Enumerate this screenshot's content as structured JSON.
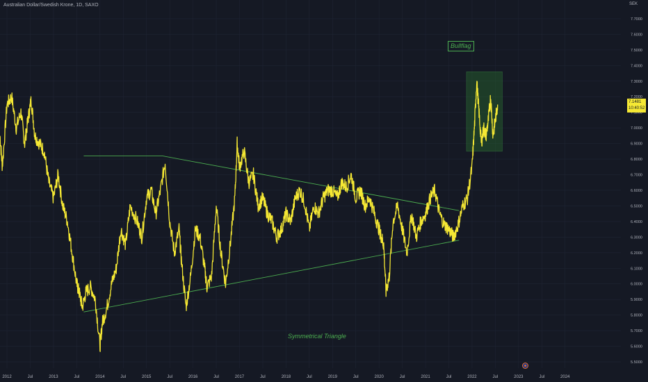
{
  "header": {
    "symbol": "Australian Dollar/Swedish Krone",
    "interval": "1D",
    "exchange": "SAXO"
  },
  "currency_label": "SEK",
  "annotations": {
    "bullflag": "Bullflag",
    "triangle": "Symmetrical Triangle"
  },
  "last_price": {
    "value": "7.1481",
    "countdown": "10:40:52"
  },
  "colors": {
    "background": "#151924",
    "grid": "#1f2433",
    "price_line": "#f5e834",
    "pattern": "#4caf50",
    "axis_text": "#b2b5be"
  },
  "chart_data": {
    "type": "line",
    "title": "",
    "xlabel": "",
    "ylabel": "",
    "ylim": [
      5.46,
      7.82
    ],
    "xlim": [
      2011.85,
      2025.2
    ],
    "y_ticks": [
      "5.5000",
      "5.6000",
      "5.7000",
      "5.8000",
      "5.9000",
      "6.0000",
      "6.1000",
      "6.2000",
      "6.3000",
      "6.4000",
      "6.5000",
      "6.6000",
      "6.7000",
      "6.8000",
      "6.9000",
      "7.0000",
      "7.1000",
      "7.2000",
      "7.3000",
      "7.4000",
      "7.5000",
      "7.6000",
      "7.7000"
    ],
    "x_ticks": [
      {
        "label": "2012",
        "x": 2012.0
      },
      {
        "label": "Jul",
        "x": 2012.5
      },
      {
        "label": "2013",
        "x": 2013.0
      },
      {
        "label": "Jul",
        "x": 2013.5
      },
      {
        "label": "2014",
        "x": 2014.0
      },
      {
        "label": "Jul",
        "x": 2014.5
      },
      {
        "label": "2015",
        "x": 2015.0
      },
      {
        "label": "Jul",
        "x": 2015.5
      },
      {
        "label": "2016",
        "x": 2016.0
      },
      {
        "label": "Jul",
        "x": 2016.5
      },
      {
        "label": "2017",
        "x": 2017.0
      },
      {
        "label": "Jul",
        "x": 2017.5
      },
      {
        "label": "2018",
        "x": 2018.0
      },
      {
        "label": "Jul",
        "x": 2018.5
      },
      {
        "label": "2019",
        "x": 2019.0
      },
      {
        "label": "Jul",
        "x": 2019.5
      },
      {
        "label": "2020",
        "x": 2020.0
      },
      {
        "label": "Jul",
        "x": 2020.5
      },
      {
        "label": "2021",
        "x": 2021.0
      },
      {
        "label": "Jul",
        "x": 2021.5
      },
      {
        "label": "2022",
        "x": 2022.0
      },
      {
        "label": "Jul",
        "x": 2022.5
      },
      {
        "label": "2023",
        "x": 2023.0
      },
      {
        "label": "Jul",
        "x": 2023.5
      },
      {
        "label": "2024",
        "x": 2024.0
      }
    ],
    "series": [
      {
        "x": [
          2011.85,
          2011.9,
          2012.0,
          2012.1,
          2012.2,
          2012.3,
          2012.38,
          2012.45,
          2012.52,
          2012.6,
          2012.7,
          2012.8,
          2012.9,
          2013.0,
          2013.1,
          2013.2,
          2013.3,
          2013.4,
          2013.5,
          2013.55,
          2013.62,
          2013.7,
          2013.8,
          2013.9,
          2014.0,
          2014.05,
          2014.15,
          2014.25,
          2014.35,
          2014.45,
          2014.55,
          2014.65,
          2014.8,
          2014.9,
          2015.0,
          2015.1,
          2015.2,
          2015.3,
          2015.4,
          2015.5,
          2015.6,
          2015.7,
          2015.75,
          2015.85,
          2015.95,
          2016.05,
          2016.15,
          2016.25,
          2016.3,
          2016.4,
          2016.5,
          2016.6,
          2016.7,
          2016.8,
          2016.9,
          2016.95,
          2017.0,
          2017.1,
          2017.2,
          2017.3,
          2017.4,
          2017.5,
          2017.6,
          2017.7,
          2017.8,
          2017.9,
          2018.0,
          2018.1,
          2018.2,
          2018.3,
          2018.4,
          2018.5,
          2018.6,
          2018.7,
          2018.8,
          2018.9,
          2019.0,
          2019.1,
          2019.2,
          2019.3,
          2019.4,
          2019.5,
          2019.6,
          2019.7,
          2019.8,
          2019.9,
          2020.0,
          2020.05,
          2020.1,
          2020.15,
          2020.22,
          2020.3,
          2020.4,
          2020.5,
          2020.6,
          2020.7,
          2020.8,
          2020.9,
          2021.0,
          2021.1,
          2021.2,
          2021.3,
          2021.4,
          2021.5,
          2021.6,
          2021.7,
          2021.8,
          2021.9,
          2022.0,
          2022.05,
          2022.1,
          2022.15,
          2022.2,
          2022.25,
          2022.3,
          2022.35,
          2022.4,
          2022.45,
          2022.5,
          2022.55
        ],
        "y": [
          6.95,
          6.75,
          7.15,
          7.2,
          7.0,
          7.1,
          6.9,
          7.05,
          7.18,
          6.95,
          6.9,
          6.85,
          6.65,
          6.55,
          6.7,
          6.5,
          6.4,
          6.2,
          6.0,
          5.95,
          5.85,
          5.95,
          5.98,
          5.9,
          5.6,
          5.75,
          5.85,
          6.0,
          6.1,
          6.35,
          6.25,
          6.5,
          6.4,
          6.3,
          6.55,
          6.6,
          6.45,
          6.6,
          6.78,
          6.4,
          6.2,
          6.35,
          6.15,
          5.85,
          6.05,
          6.35,
          6.3,
          6.1,
          5.98,
          6.05,
          6.5,
          6.2,
          6.0,
          6.25,
          6.55,
          6.9,
          6.75,
          6.85,
          6.65,
          6.7,
          6.5,
          6.55,
          6.45,
          6.4,
          6.3,
          6.35,
          6.45,
          6.4,
          6.55,
          6.6,
          6.52,
          6.35,
          6.5,
          6.45,
          6.55,
          6.6,
          6.6,
          6.55,
          6.65,
          6.62,
          6.7,
          6.55,
          6.6,
          6.5,
          6.55,
          6.45,
          6.35,
          6.3,
          6.25,
          5.95,
          6.05,
          6.4,
          6.5,
          6.35,
          6.2,
          6.45,
          6.3,
          6.4,
          6.45,
          6.55,
          6.6,
          6.45,
          6.38,
          6.35,
          6.3,
          6.38,
          6.5,
          6.55,
          6.75,
          7.0,
          7.3,
          7.1,
          6.9,
          7.0,
          6.95,
          7.05,
          7.2,
          6.95,
          7.05,
          7.15
        ]
      }
    ],
    "patterns": {
      "triangle_upper": [
        [
          2013.65,
          6.82
        ],
        [
          2015.35,
          6.82
        ],
        [
          2021.72,
          6.47
        ]
      ],
      "triangle_lower": [
        [
          2013.65,
          5.82
        ],
        [
          2021.72,
          6.28
        ]
      ],
      "bullflag_box": {
        "x0": 2021.88,
        "x1": 2022.65,
        "y0": 6.85,
        "y1": 7.36
      }
    }
  }
}
